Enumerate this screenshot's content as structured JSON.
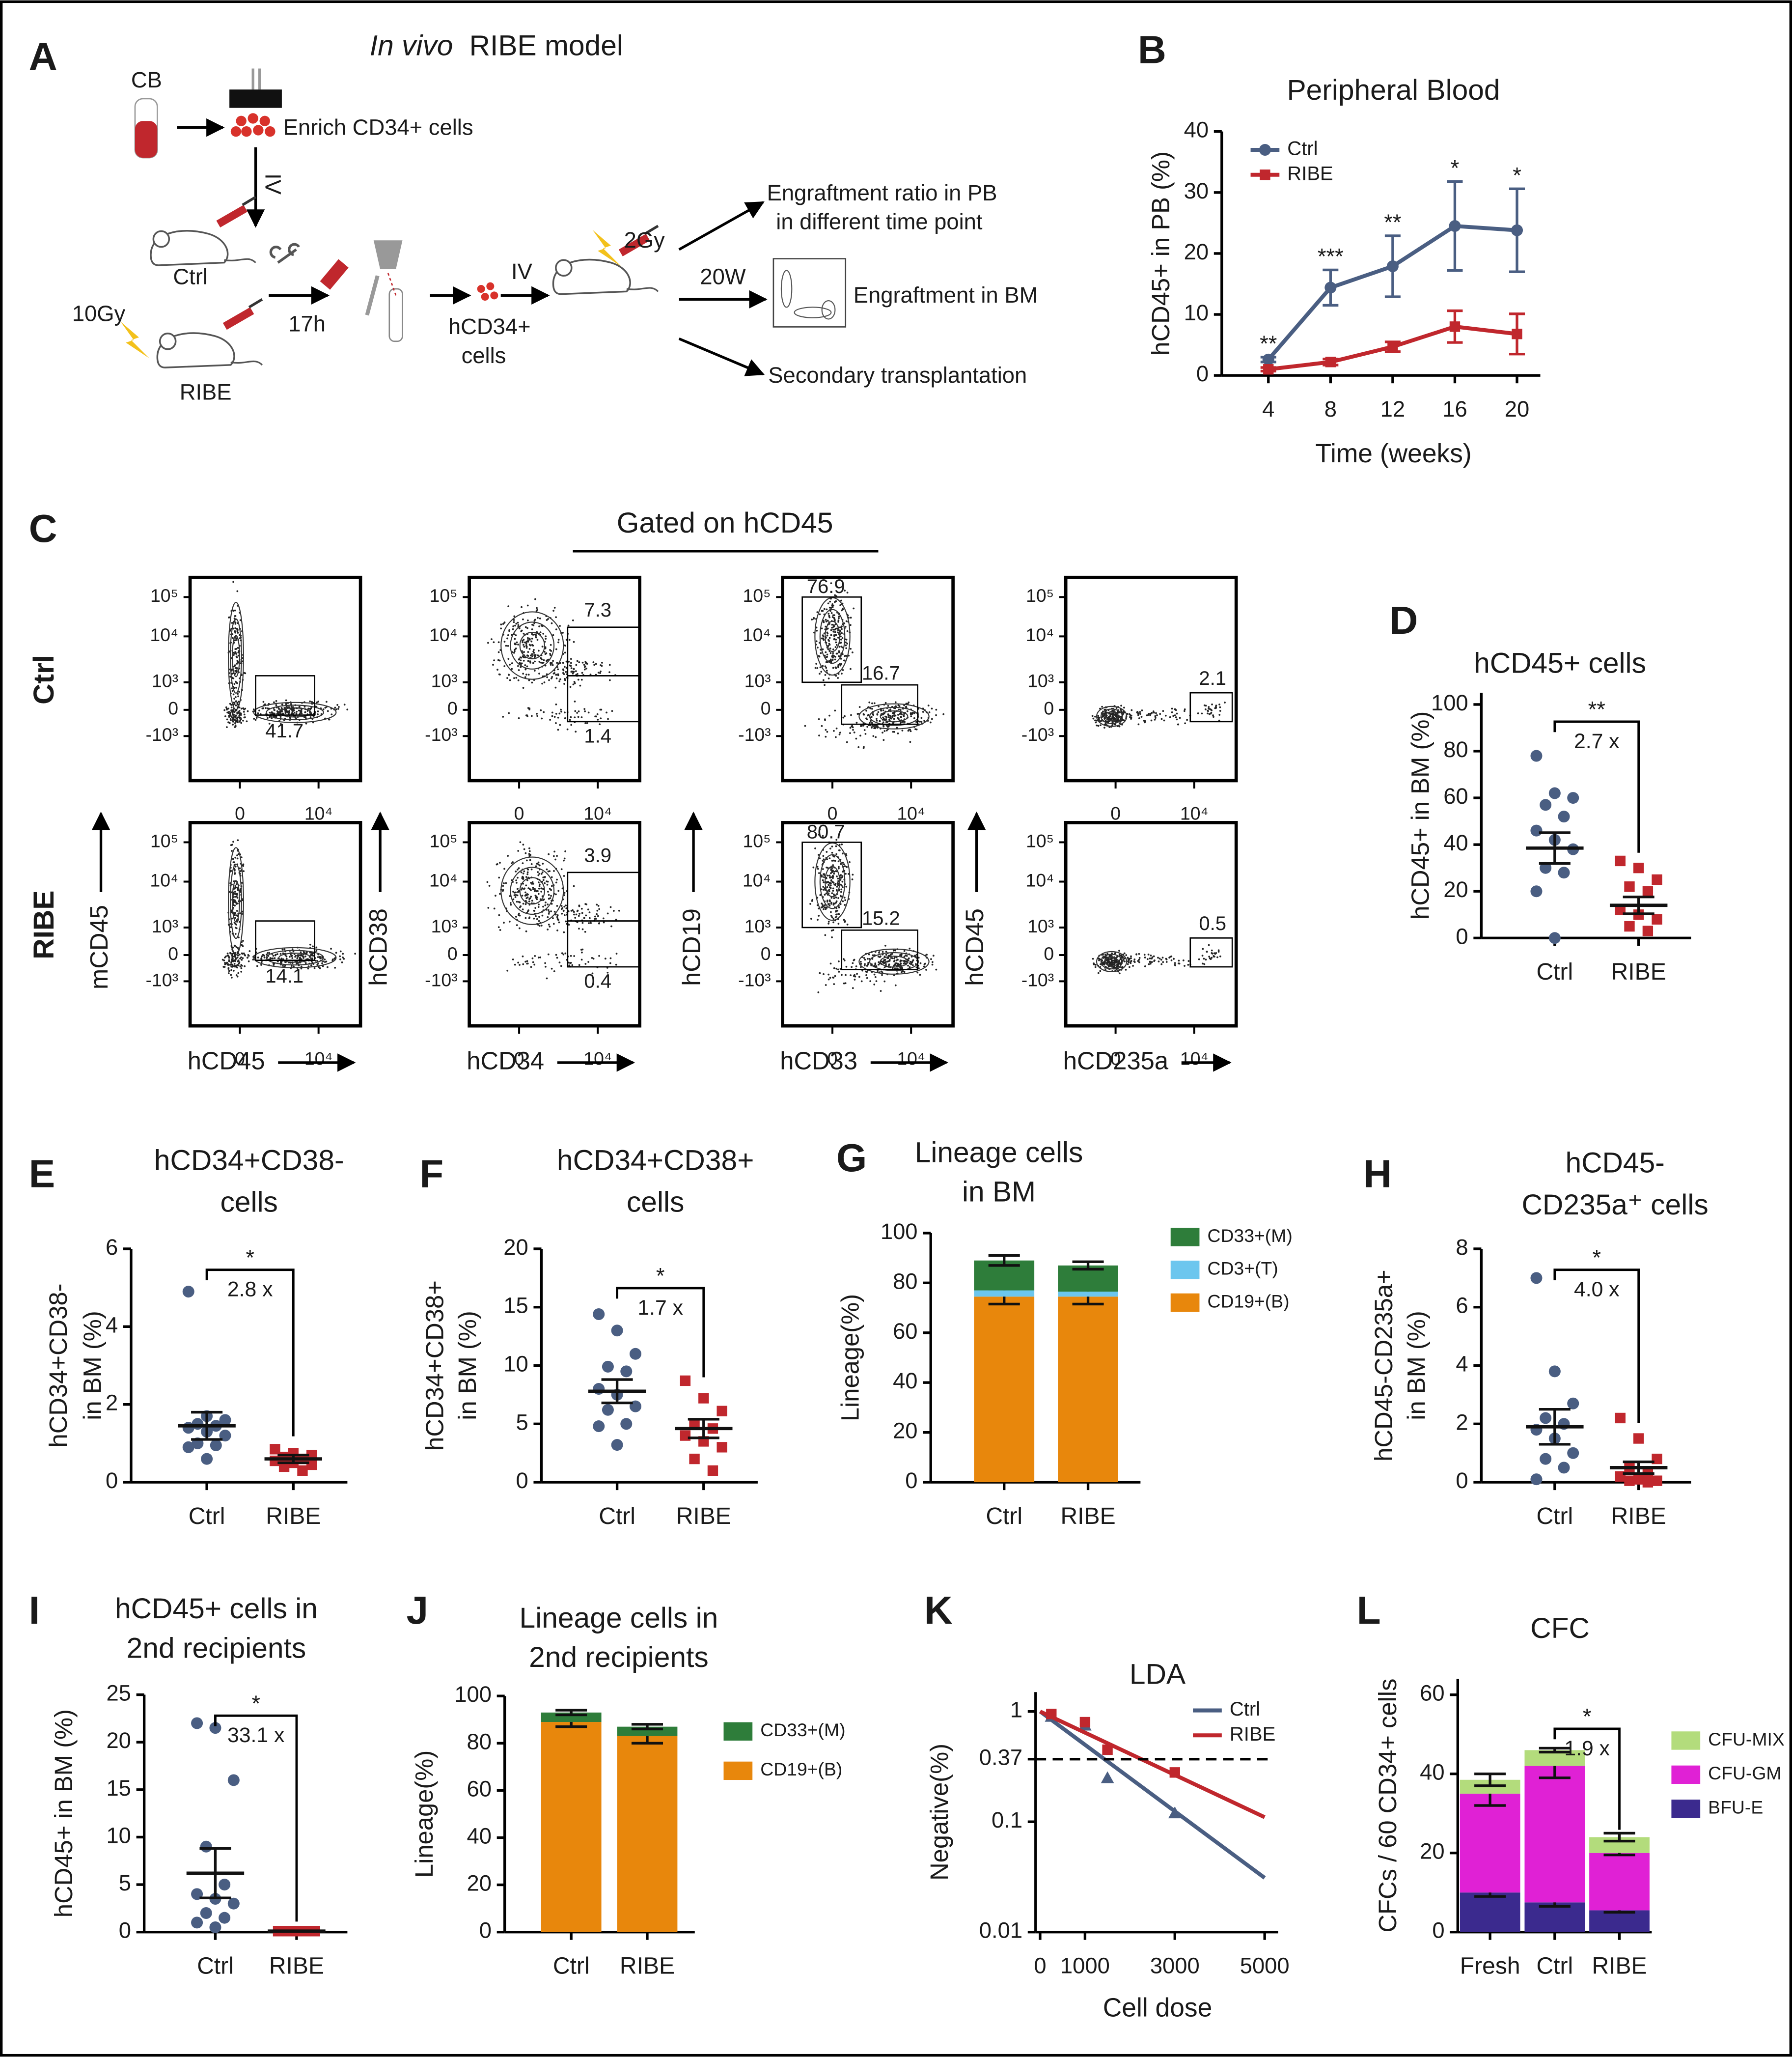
{
  "diagram": {
    "panel": "A",
    "title_italic": "In vivo",
    "title_rest": "RIBE model",
    "cb": "CB",
    "enrich": "Enrich CD34+ cells",
    "iv1": "IV",
    "ctrl": "Ctrl",
    "dose1": "10Gy",
    "ribe": "RIBE",
    "time": "17h",
    "cells_line1": "hCD34+",
    "cells_line2": "cells",
    "iv2": "IV",
    "dose2": "2Gy",
    "weeks": "20W",
    "out1_line1": "Engraftment ratio in PB",
    "out1_line2": "in different time point",
    "out2": "Engraftment in BM",
    "out3": "Secondary transplantation"
  },
  "flow": {
    "panel": "C",
    "title": "Gated on hCD45",
    "rows": [
      "Ctrl",
      "RIBE"
    ],
    "x_labels": [
      "hCD45",
      "hCD34",
      "hCD33",
      "hCD235a"
    ],
    "y_labels": [
      "mCD45",
      "hCD38",
      "hCD19",
      "hCD45"
    ],
    "y_ticks": [
      "10⁵",
      "10⁴",
      "10³",
      "0",
      "-10³"
    ],
    "x_ticks": [
      "0",
      "10⁴"
    ],
    "gates": [
      [
        [
          41.7
        ],
        [
          7.3,
          1.4
        ],
        [
          76.9,
          16.7
        ],
        [
          2.1
        ]
      ],
      [
        [
          14.1
        ],
        [
          3.9,
          0.4
        ],
        [
          80.7,
          15.2
        ],
        [
          0.5
        ]
      ]
    ]
  },
  "chart_data": [
    {
      "panel": "B",
      "type": "line",
      "title": "Peripheral Blood",
      "ylabel": "hCD45+ in PB (%)",
      "xlabel": "Time (weeks)",
      "x": [
        4,
        8,
        12,
        16,
        20
      ],
      "xlim": [
        1,
        21.5
      ],
      "xticks": [
        4,
        8,
        12,
        16,
        20
      ],
      "ylim": [
        0,
        40
      ],
      "yticks": [
        0,
        10,
        20,
        30,
        40
      ],
      "legend": "upper left",
      "series": [
        {
          "name": "Ctrl",
          "color": "#4a5e82",
          "marker": "circle",
          "values": [
            2.6,
            14.4,
            17.9,
            24.5,
            23.8
          ],
          "errors": [
            0.4,
            2.9,
            5,
            7.3,
            6.8
          ],
          "sig": [
            "**",
            "***",
            "**",
            "*",
            "*"
          ]
        },
        {
          "name": "RIBE",
          "color": "#c0272d",
          "marker": "square",
          "values": [
            1,
            2.2,
            4.7,
            8,
            6.8
          ],
          "errors": [
            0.3,
            0.5,
            0.8,
            2.6,
            3.3
          ]
        }
      ]
    },
    {
      "panel": "D",
      "type": "dot",
      "title": "hCD45+ cells",
      "ylabel": "hCD45+ in BM (%)",
      "categories": [
        "Ctrl",
        "RIBE"
      ],
      "ylim": [
        0,
        105
      ],
      "yticks": [
        0,
        20,
        40,
        60,
        80,
        100
      ],
      "sig": "**",
      "fold": "2.7 x",
      "groups": [
        {
          "color": "#4a5e82",
          "marker": "circle",
          "values": [
            78,
            62,
            60,
            57,
            52,
            46,
            42,
            38,
            30,
            28,
            20,
            0
          ],
          "mean": 38.5,
          "sem": 6.6
        },
        {
          "color": "#c0272d",
          "marker": "square",
          "values": [
            33,
            30,
            25,
            22,
            20,
            12,
            10,
            8,
            5,
            3
          ],
          "mean": 14,
          "sem": 3.6
        }
      ]
    },
    {
      "panel": "E",
      "type": "dot",
      "title": [
        "hCD34+CD38-",
        "cells"
      ],
      "ylabel": [
        "hCD34+CD38-",
        "in BM (%)"
      ],
      "categories": [
        "Ctrl",
        "RIBE"
      ],
      "ylim": [
        0,
        6
      ],
      "yticks": [
        0,
        2,
        4,
        6
      ],
      "sig": "*",
      "fold": "2.8 x",
      "groups": [
        {
          "color": "#4a5e82",
          "marker": "circle",
          "values": [
            4.9,
            1.7,
            1.6,
            1.5,
            1.45,
            1.4,
            1.3,
            1.2,
            1.0,
            0.95,
            0.9,
            0.6
          ],
          "mean": 1.45,
          "sem": 0.35
        },
        {
          "color": "#c0272d",
          "marker": "square",
          "values": [
            0.85,
            0.75,
            0.7,
            0.65,
            0.6,
            0.55,
            0.5,
            0.45,
            0.4,
            0.3
          ],
          "mean": 0.6,
          "sem": 0.1
        }
      ]
    },
    {
      "panel": "F",
      "type": "dot",
      "title": [
        "hCD34+CD38+",
        "cells"
      ],
      "ylabel": [
        "hCD34+CD38+",
        "in BM (%)"
      ],
      "categories": [
        "Ctrl",
        "RIBE"
      ],
      "ylim": [
        0,
        20
      ],
      "yticks": [
        0,
        5,
        10,
        15,
        20
      ],
      "sig": "*",
      "fold": "1.7 x",
      "groups": [
        {
          "color": "#4a5e82",
          "marker": "circle",
          "values": [
            14.4,
            13,
            11,
            9.9,
            9.5,
            8,
            7.5,
            6.5,
            6.2,
            5,
            4.8,
            3.2
          ],
          "mean": 7.8,
          "sem": 1.0
        },
        {
          "color": "#c0272d",
          "marker": "square",
          "values": [
            8.7,
            7.2,
            6.1,
            5,
            4.6,
            4,
            3.5,
            3,
            2,
            1
          ],
          "mean": 4.6,
          "sem": 0.8
        }
      ]
    },
    {
      "panel": "G",
      "type": "stacked_bar",
      "title": [
        "Lineage cells",
        "in BM"
      ],
      "ylabel": "Lineage(%)",
      "categories": [
        "Ctrl",
        "RIBE"
      ],
      "ylim": [
        0,
        100
      ],
      "yticks": [
        0,
        20,
        40,
        60,
        80,
        100
      ],
      "legend": "right",
      "series": [
        {
          "name": "CD19+(B)",
          "color": "#e8870c",
          "values": [
            74.5,
            74.5
          ],
          "errors": [
            3,
            3
          ]
        },
        {
          "name": "CD3+(T)",
          "color": "#6cc6ee",
          "values": [
            2.5,
            2
          ]
        },
        {
          "name": "CD33+(M)",
          "color": "#2e7d3a",
          "values": [
            12,
            10.5
          ],
          "errors": [
            2,
            1.5
          ]
        }
      ]
    },
    {
      "panel": "H",
      "type": "dot",
      "title": [
        "hCD45-",
        "CD235a⁺ cells"
      ],
      "ylabel": [
        "hCD45-CD235a+",
        "in BM (%)"
      ],
      "categories": [
        "Ctrl",
        "RIBE"
      ],
      "ylim": [
        0,
        8
      ],
      "yticks": [
        0,
        2,
        4,
        6,
        8
      ],
      "sig": "*",
      "fold": "4.0 x",
      "groups": [
        {
          "color": "#4a5e82",
          "marker": "circle",
          "values": [
            7.0,
            3.8,
            2.7,
            2.2,
            2.0,
            1.8,
            1.5,
            1.0,
            0.8,
            0.5,
            0.1
          ],
          "mean": 1.9,
          "sem": 0.6
        },
        {
          "color": "#c0272d",
          "marker": "square",
          "values": [
            2.2,
            1.5,
            0.8,
            0.5,
            0.3,
            0.2,
            0.1,
            0.05,
            0.05,
            0
          ],
          "mean": 0.5,
          "sem": 0.2
        }
      ]
    },
    {
      "panel": "I",
      "type": "dot",
      "title": [
        "hCD45+ cells in",
        "2nd recipients"
      ],
      "ylabel": "hCD45+ in BM (%)",
      "categories": [
        "Ctrl",
        "RIBE"
      ],
      "ylim": [
        0,
        25
      ],
      "yticks": [
        0,
        5,
        10,
        15,
        20,
        25
      ],
      "sig": "*",
      "fold": "33.1 x",
      "groups": [
        {
          "color": "#4a5e82",
          "marker": "circle",
          "values": [
            22,
            21.5,
            16,
            9,
            5,
            4,
            3.5,
            3,
            2,
            1.5,
            1,
            0.5
          ],
          "mean": 6.2,
          "sem": 2.6
        },
        {
          "color": "#c0272d",
          "marker": "square",
          "values": [
            0.1,
            0.1,
            0.1,
            0.1,
            0.1,
            0.1,
            0.1,
            0.1,
            0.1,
            0.1
          ],
          "mean": 0.1,
          "sem": 0.02
        }
      ]
    },
    {
      "panel": "J",
      "type": "stacked_bar",
      "title": [
        "Lineage cells in",
        "2nd recipients"
      ],
      "ylabel": "Lineage(%)",
      "categories": [
        "Ctrl",
        "RIBE"
      ],
      "ylim": [
        0,
        100
      ],
      "yticks": [
        0,
        20,
        40,
        60,
        80,
        100
      ],
      "legend": "right",
      "series": [
        {
          "name": "CD19+(B)",
          "color": "#e8870c",
          "values": [
            89,
            83
          ],
          "errors": [
            2,
            3
          ]
        },
        {
          "name": "CD33+(M)",
          "color": "#2e7d3a",
          "values": [
            4,
            4
          ],
          "errors": [
            1,
            1
          ]
        }
      ]
    },
    {
      "panel": "K",
      "type": "line",
      "title": "LDA",
      "ylabel": "Negative(%)",
      "xlabel": "Cell dose",
      "log_y": true,
      "x": [
        0,
        5000
      ],
      "xlim": [
        -100,
        5300
      ],
      "xticks": [
        0,
        1000,
        3000,
        5000
      ],
      "ylim": [
        0.01,
        1.5
      ],
      "yticks": [
        0.01,
        0.1,
        0.37,
        1
      ],
      "hline": 0.37,
      "legend": "upper right",
      "series": [
        {
          "name": "Ctrl",
          "color": "#4a5e82",
          "marker": "triangle",
          "values": [
            1,
            0.031
          ],
          "points_x": [
            250,
            1000,
            1500,
            3000
          ],
          "points_values": [
            0.9,
            0.75,
            0.25,
            0.12
          ]
        },
        {
          "name": "RIBE",
          "color": "#c0272d",
          "marker": "square",
          "values": [
            1,
            0.11
          ],
          "points_x": [
            250,
            1000,
            1500,
            3000
          ],
          "points_values": [
            0.95,
            0.8,
            0.45,
            0.28
          ]
        }
      ]
    },
    {
      "panel": "L",
      "type": "stacked_bar",
      "title": "CFC",
      "ylabel": "CFCs / 60 CD34+ cells",
      "categories": [
        "Fresh",
        "Ctrl",
        "RIBE"
      ],
      "ylim": [
        0,
        64
      ],
      "yticks": [
        0,
        20,
        40,
        60
      ],
      "legend": "right",
      "sig": "*",
      "fold": "1.9 x",
      "series": [
        {
          "name": "BFU-E",
          "color": "#3b2a8e",
          "values": [
            10,
            7.5,
            5.5
          ],
          "errors": [
            1,
            1,
            0.5
          ]
        },
        {
          "name": "CFU-GM",
          "color": "#e021d5",
          "values": [
            25,
            34.5,
            14.5
          ],
          "errors": [
            3,
            3,
            0.5
          ]
        },
        {
          "name": "CFU-MIX",
          "color": "#b3dc7c",
          "values": [
            3.5,
            4,
            4
          ],
          "errors": [
            1.5,
            0.5,
            1
          ]
        }
      ]
    }
  ]
}
